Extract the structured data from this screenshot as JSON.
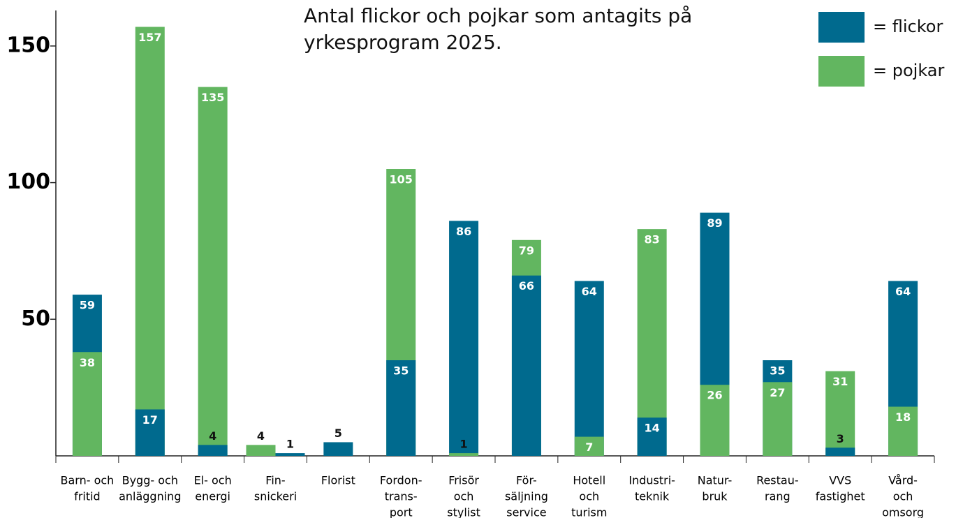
{
  "chart_data": {
    "type": "bar",
    "title": "Antal flickor och pojkar som antagits på yrkesprogram 2025.",
    "categories": [
      [
        "Barn- och",
        "fritid"
      ],
      [
        "Bygg- och",
        "anläggning"
      ],
      [
        "El- och",
        "energi"
      ],
      [
        "Fin-",
        "snickeri"
      ],
      [
        "Florist"
      ],
      [
        "Fordon-",
        "trans-",
        "port"
      ],
      [
        "Frisör",
        "och",
        "stylist"
      ],
      [
        "För-",
        "säljning",
        "service"
      ],
      [
        "Hotell",
        "och",
        "turism"
      ],
      [
        "Industri-",
        "teknik"
      ],
      [
        "Natur-",
        "bruk"
      ],
      [
        "Restau-",
        "rang"
      ],
      [
        "VVS",
        "fastighet"
      ],
      [
        "Vård-",
        "och",
        "omsorg"
      ]
    ],
    "series": [
      {
        "name": "= flickor",
        "color": "#006a8e",
        "values": [
          59,
          17,
          4,
          1,
          5,
          35,
          86,
          66,
          64,
          14,
          89,
          35,
          3,
          64
        ]
      },
      {
        "name": "= pojkar",
        "color": "#62b660",
        "values": [
          38,
          157,
          135,
          4,
          null,
          105,
          1,
          79,
          7,
          83,
          26,
          27,
          31,
          18
        ]
      }
    ],
    "ylim": [
      0,
      163
    ],
    "yticks": [
      50,
      100,
      150
    ]
  }
}
